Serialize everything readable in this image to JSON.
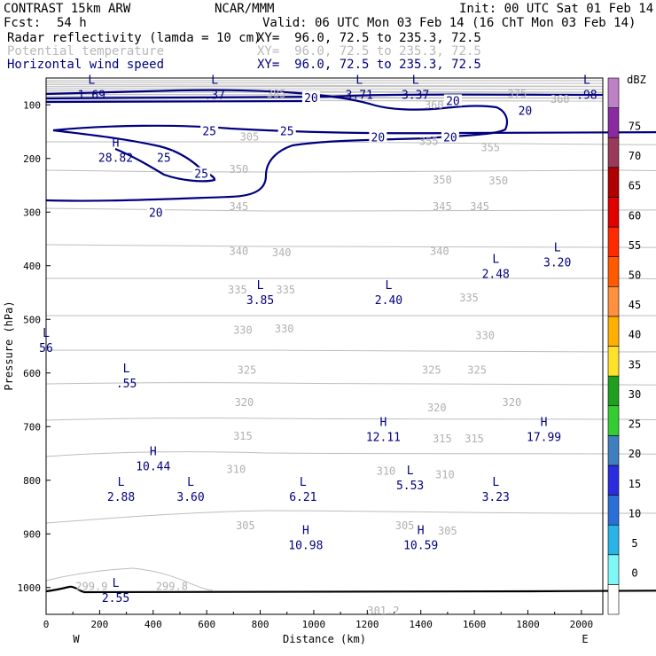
{
  "header": {
    "model": "CONTRAST 15km ARW",
    "org": "NCAR/MMM",
    "init": "Init: 00 UTC Sat 01 Feb 14",
    "fcst_label": "Fcst:",
    "fcst_value": "54 h",
    "valid": "Valid: 06 UTC Mon 03 Feb 14 (16 ChT Mon 03 Feb 14)",
    "fields": [
      {
        "name": "Radar reflectivity (lamda = 10 cm)",
        "xy": "XY=  96.0, 72.5 to 235.3, 72.5"
      },
      {
        "name": "Potential temperature",
        "xy": "XY=  96.0, 72.5 to 235.3, 72.5"
      },
      {
        "name": "Horizontal wind speed",
        "xy": "XY=  96.0, 72.5 to 235.3, 72.5"
      }
    ]
  },
  "colorbar": {
    "unit": "dBZ",
    "levels": [
      "0",
      "5",
      "10",
      "15",
      "20",
      "25",
      "30",
      "35",
      "40",
      "45",
      "50",
      "55",
      "60",
      "65",
      "70",
      "75"
    ],
    "colors": [
      "#ffffff",
      "#7ff7f7",
      "#28b4e6",
      "#2a6fd6",
      "#2b2be0",
      "#3f7fbf",
      "#33cc33",
      "#1f9f1f",
      "#ffe02a",
      "#ffb000",
      "#ff9040",
      "#ff5a00",
      "#ff2a00",
      "#e00000",
      "#b00000",
      "#9a3a5a",
      "#8a2aa0",
      "#c080c8"
    ]
  },
  "chart_data": {
    "type": "contour",
    "xlabel": "Distance (km)",
    "ylabel": "Pressure (hPa)",
    "x_ticks": [
      "0",
      "200",
      "400",
      "600",
      "800",
      "1000",
      "1200",
      "1400",
      "1600",
      "1800",
      "2000"
    ],
    "y_ticks": [
      "100",
      "200",
      "300",
      "400",
      "500",
      "600",
      "700",
      "800",
      "900",
      "1000"
    ],
    "xlim": [
      0,
      2080
    ],
    "ylim": [
      1050,
      50
    ],
    "x_end_labels": {
      "left": "W",
      "right": "E"
    },
    "theta_labels": [
      {
        "text": "305",
        "x": 760,
        "p": 160
      },
      {
        "text": "355",
        "x": 1430,
        "p": 168
      },
      {
        "text": "355",
        "x": 1660,
        "p": 180
      },
      {
        "text": "350",
        "x": 720,
        "p": 220
      },
      {
        "text": "350",
        "x": 1480,
        "p": 240
      },
      {
        "text": "350",
        "x": 1690,
        "p": 242
      },
      {
        "text": "345",
        "x": 720,
        "p": 290
      },
      {
        "text": "345",
        "x": 1480,
        "p": 290
      },
      {
        "text": "345",
        "x": 1620,
        "p": 290
      },
      {
        "text": "340",
        "x": 720,
        "p": 373
      },
      {
        "text": "340",
        "x": 880,
        "p": 376
      },
      {
        "text": "340",
        "x": 1470,
        "p": 373
      },
      {
        "text": "335",
        "x": 715,
        "p": 445
      },
      {
        "text": "335",
        "x": 895,
        "p": 445
      },
      {
        "text": "335",
        "x": 1580,
        "p": 460
      },
      {
        "text": "330",
        "x": 735,
        "p": 520
      },
      {
        "text": "330",
        "x": 890,
        "p": 518
      },
      {
        "text": "330",
        "x": 1640,
        "p": 530
      },
      {
        "text": "325",
        "x": 750,
        "p": 595
      },
      {
        "text": "325",
        "x": 1440,
        "p": 595
      },
      {
        "text": "325",
        "x": 1610,
        "p": 595
      },
      {
        "text": "320",
        "x": 740,
        "p": 655
      },
      {
        "text": "320",
        "x": 1460,
        "p": 665
      },
      {
        "text": "320",
        "x": 1740,
        "p": 655
      },
      {
        "text": "315",
        "x": 735,
        "p": 718
      },
      {
        "text": "315",
        "x": 1480,
        "p": 723
      },
      {
        "text": "315",
        "x": 1600,
        "p": 723
      },
      {
        "text": "310",
        "x": 710,
        "p": 780
      },
      {
        "text": "310",
        "x": 1270,
        "p": 783
      },
      {
        "text": "310",
        "x": 1490,
        "p": 790
      },
      {
        "text": "305",
        "x": 745,
        "p": 885
      },
      {
        "text": "305",
        "x": 1340,
        "p": 885
      },
      {
        "text": "305",
        "x": 1500,
        "p": 895
      },
      {
        "text": "299.9",
        "x": 170,
        "p": 998
      },
      {
        "text": "299.8",
        "x": 470,
        "p": 998
      },
      {
        "text": "301.2",
        "x": 1260,
        "p": 1043
      },
      {
        "text": "385",
        "x": 860,
        "p": 80
      },
      {
        "text": "360",
        "x": 1450,
        "p": 100
      },
      {
        "text": "375",
        "x": 1760,
        "p": 80
      },
      {
        "text": "360",
        "x": 1920,
        "p": 90
      }
    ],
    "wind_labels": [
      {
        "text": "20",
        "x": 990,
        "p": 86
      },
      {
        "text": "20",
        "x": 1520,
        "p": 92
      },
      {
        "text": "20",
        "x": 1790,
        "p": 110
      },
      {
        "text": "25",
        "x": 610,
        "p": 148
      },
      {
        "text": "25",
        "x": 900,
        "p": 148
      },
      {
        "text": "20",
        "x": 1240,
        "p": 160
      },
      {
        "text": "20",
        "x": 1510,
        "p": 160
      },
      {
        "text": "25",
        "x": 440,
        "p": 198
      },
      {
        "text": "25",
        "x": 580,
        "p": 228
      },
      {
        "text": "20",
        "x": 410,
        "p": 300
      }
    ],
    "extrema": [
      {
        "type": "L",
        "value": "1.69",
        "x": 170,
        "p": 72
      },
      {
        "type": "L",
        "value": ".37",
        "x": 630,
        "p": 72
      },
      {
        "type": "L",
        "value": "3.71",
        "x": 1170,
        "p": 72
      },
      {
        "type": "L",
        "value": "3.37",
        "x": 1380,
        "p": 72
      },
      {
        "type": "L",
        "value": ".98",
        "x": 2020,
        "p": 72
      },
      {
        "type": "H",
        "value": "28.82",
        "x": 260,
        "p": 190
      },
      {
        "type": "L",
        "value": "3.20",
        "x": 1910,
        "p": 385
      },
      {
        "type": "L",
        "value": "2.48",
        "x": 1680,
        "p": 406
      },
      {
        "type": "L",
        "value": "3.85",
        "x": 800,
        "p": 455
      },
      {
        "type": "L",
        "value": "2.40",
        "x": 1280,
        "p": 455
      },
      {
        "type": "L",
        "value": "56",
        "x": 0,
        "p": 544
      },
      {
        "type": "L",
        "value": ".55",
        "x": 300,
        "p": 610
      },
      {
        "type": "H",
        "value": "12.11",
        "x": 1260,
        "p": 710
      },
      {
        "type": "H",
        "value": "17.99",
        "x": 1860,
        "p": 710
      },
      {
        "type": "H",
        "value": "10.44",
        "x": 400,
        "p": 765
      },
      {
        "type": "L",
        "value": "5.53",
        "x": 1360,
        "p": 800
      },
      {
        "type": "L",
        "value": "2.88",
        "x": 280,
        "p": 822
      },
      {
        "type": "L",
        "value": "3.60",
        "x": 540,
        "p": 822
      },
      {
        "type": "L",
        "value": "6.21",
        "x": 960,
        "p": 822
      },
      {
        "type": "L",
        "value": "3.23",
        "x": 1680,
        "p": 822
      },
      {
        "type": "H",
        "value": "10.98",
        "x": 970,
        "p": 912
      },
      {
        "type": "H",
        "value": "10.59",
        "x": 1400,
        "p": 912
      },
      {
        "type": "L",
        "value": "2.55",
        "x": 260,
        "p": 1010
      }
    ]
  }
}
